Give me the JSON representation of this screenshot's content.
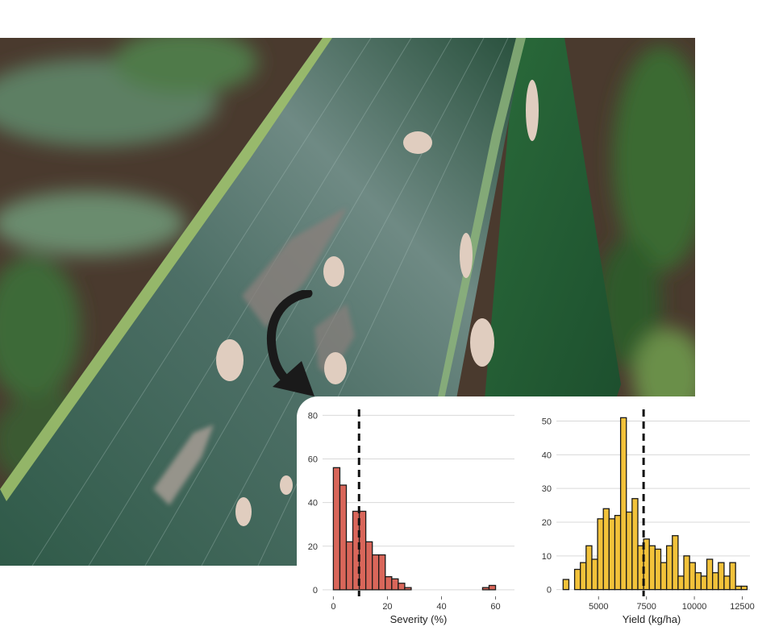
{
  "photo": {
    "subject": "leaf-photo",
    "colors": {
      "background_soil": "#4a3a2e",
      "foliage_blur": "#3f6a3a",
      "leaf_dark": "#1f4a36",
      "leaf_sheen": "#7f9a92",
      "lesion": "#d9c6b8",
      "lesion_grey": "#8a7f7c"
    }
  },
  "arrow": {
    "icon": "curved-arrow-icon",
    "color": "#1a1a1a"
  },
  "chart_data": [
    {
      "type": "histogram",
      "title": "",
      "xlabel": "Severity (%)",
      "ylabel": "",
      "bar_color": "#d9665a",
      "edge_color": "#1a1a1a",
      "xlim": [
        -4,
        67
      ],
      "ylim": [
        -3,
        82
      ],
      "x_ticks": [
        0,
        20,
        40,
        60
      ],
      "y_ticks": [
        0,
        20,
        40,
        60,
        80
      ],
      "x_tick_labels": [
        "0",
        "20",
        "40",
        "60"
      ],
      "y_tick_labels": [
        "0",
        "20",
        "40",
        "60",
        "80"
      ],
      "grid": "horizontal",
      "bin_width": 2.4,
      "bin_start": 1.2,
      "counts": [
        56,
        48,
        22,
        36,
        36,
        22,
        16,
        16,
        6,
        5,
        3,
        1,
        0,
        0,
        0,
        0,
        0,
        0,
        0,
        0,
        0,
        0,
        0,
        1,
        2
      ],
      "reference_line": {
        "x": 9.5,
        "style": "dashed"
      }
    },
    {
      "type": "histogram",
      "title": "",
      "xlabel": "Yield (kg/ha)",
      "ylabel": "",
      "bar_color": "#f2c23a",
      "edge_color": "#1a1a1a",
      "xlim": [
        2800,
        12900
      ],
      "ylim": [
        -2,
        53
      ],
      "x_ticks": [
        5000,
        7500,
        10000,
        12500
      ],
      "y_ticks": [
        0,
        10,
        20,
        30,
        40,
        50
      ],
      "x_tick_labels": [
        "5000",
        "7500",
        "10000",
        "12500"
      ],
      "y_tick_labels": [
        "0",
        "10",
        "20",
        "30",
        "40",
        "50"
      ],
      "grid": "horizontal",
      "bin_width": 300,
      "bin_start": 3300,
      "counts": [
        3,
        0,
        6,
        8,
        13,
        9,
        21,
        24,
        21,
        22,
        51,
        23,
        27,
        13,
        15,
        13,
        12,
        8,
        13,
        16,
        4,
        10,
        8,
        5,
        4,
        9,
        5,
        8,
        4,
        8,
        1,
        1
      ],
      "reference_line": {
        "x": 7350,
        "style": "dashed"
      }
    }
  ]
}
